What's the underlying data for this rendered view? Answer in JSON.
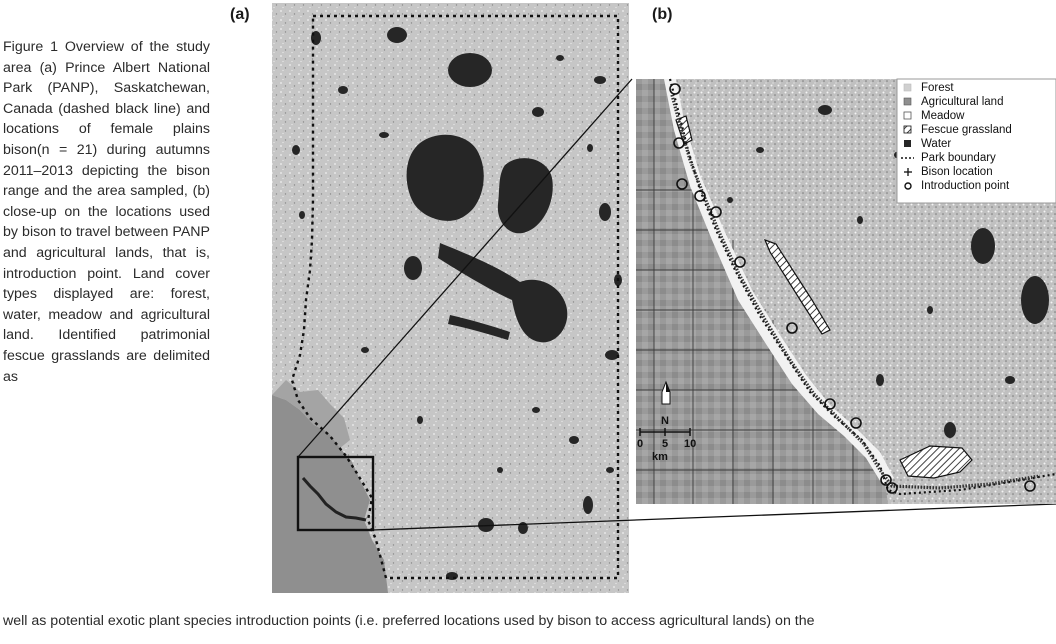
{
  "caption": {
    "side_text": "Figure 1 Overview of the study area (a) Prince Albert National Park (PANP), Saskatchewan, Canada (dashed black line) and locations of female plains bison(n = 21) during autumns 2011–2013 depicting the bison range and the area sampled, (b) close-up on the locations used by bison to travel between PANP and agricultural lands, that is, introduction point. Land cover types displayed are: forest, water, meadow and agricultural land. Identified patrimonial fescue grasslands are delimited as",
    "bottom_text": "well as potential exotic plant species introduction points (i.e. preferred locations used by bison to access agricultural lands) on the"
  },
  "panels": {
    "a_label": "(a)",
    "b_label": "(b)"
  },
  "legend": {
    "items": [
      {
        "label": "Forest",
        "symbol": "light-square"
      },
      {
        "label": "Agricultural land",
        "symbol": "mid-square"
      },
      {
        "label": "Meadow",
        "symbol": "white-square"
      },
      {
        "label": "Fescue grassland",
        "symbol": "hatched-square"
      },
      {
        "label": "Water",
        "symbol": "dark-square"
      },
      {
        "label": "Park boundary",
        "symbol": "dotted-line"
      },
      {
        "label": "Bison location",
        "symbol": "plus"
      },
      {
        "label": "Introduction point",
        "symbol": "circle"
      }
    ]
  },
  "scale_bar": {
    "ticks": [
      "0",
      "5",
      "10"
    ],
    "unit": "km"
  },
  "north_arrow": {
    "label": "N"
  },
  "colors": {
    "forest": "#c8c8c8",
    "agricultural": "#8a8a8a",
    "meadow": "#f4f4f4",
    "water": "#2a2a2a",
    "boundary": "#111111"
  }
}
